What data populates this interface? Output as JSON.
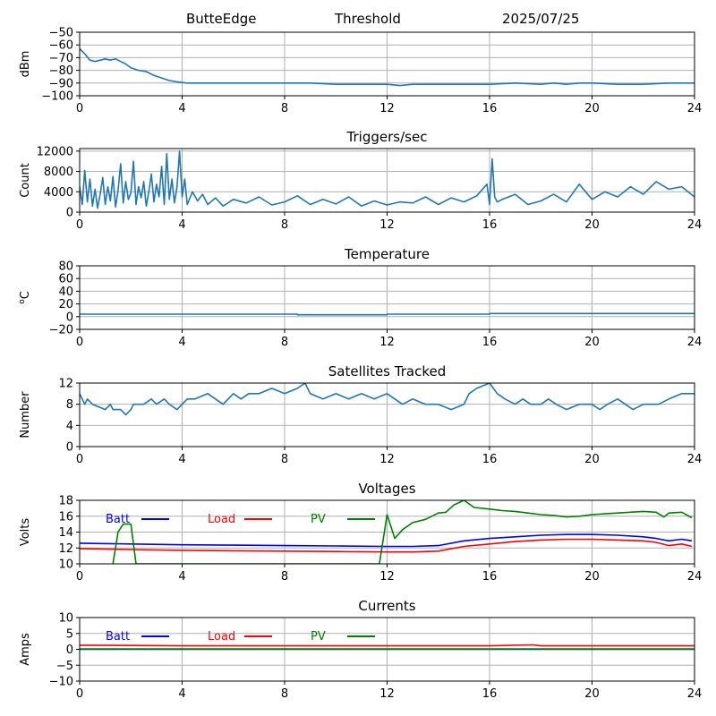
{
  "header": {
    "station": "ButteEdge",
    "mode": "Threshold",
    "date": "2025/07/25"
  },
  "colors": {
    "line": "#1f77b4",
    "batt": "#0000ff",
    "load": "#ff0000",
    "pv": "#008000",
    "grid": "#b0b0b0"
  },
  "chart_data": [
    {
      "id": "rssi",
      "type": "line",
      "title": "",
      "xlabel": "",
      "ylabel": "dBm",
      "xlim": [
        0,
        24
      ],
      "ylim": [
        -100,
        -50
      ],
      "xticks": [
        "0",
        "4",
        "8",
        "12",
        "16",
        "20",
        "24"
      ],
      "yticks": [
        -100,
        -90,
        -80,
        -70,
        -60,
        -50
      ],
      "ytick_labels": [
        "−100",
        "−90",
        "−80",
        "−70",
        "−60",
        "−50"
      ],
      "grid": true,
      "series": [
        {
          "color": "#1f77b4",
          "x": [
            0,
            0.2,
            0.4,
            0.6,
            0.8,
            1.0,
            1.2,
            1.4,
            1.6,
            1.8,
            2.0,
            2.3,
            2.6,
            2.9,
            3.2,
            3.5,
            3.8,
            4.2,
            5,
            6,
            7,
            8,
            9,
            10,
            11,
            12,
            12.5,
            13,
            14,
            15,
            16,
            17,
            18,
            18.5,
            19,
            19.5,
            20,
            21,
            22,
            23,
            24
          ],
          "y": [
            -63,
            -67,
            -72,
            -73,
            -72,
            -71,
            -72,
            -71,
            -73,
            -75,
            -78,
            -80,
            -81,
            -84,
            -86,
            -88,
            -89,
            -90,
            -90,
            -90,
            -90,
            -90,
            -90,
            -91,
            -91,
            -91,
            -92,
            -91,
            -91,
            -91,
            -91,
            -90,
            -91,
            -90,
            -91,
            -90,
            -90,
            -91,
            -91,
            -90,
            -90
          ]
        }
      ]
    },
    {
      "id": "triggers",
      "type": "line",
      "title": "Triggers/sec",
      "xlabel": "",
      "ylabel": "Count",
      "xlim": [
        0,
        24
      ],
      "ylim": [
        0,
        12500
      ],
      "xticks": [
        "0",
        "4",
        "8",
        "12",
        "16",
        "20",
        "24"
      ],
      "yticks": [
        0,
        4000,
        8000,
        12000
      ],
      "ytick_labels": [
        "0",
        "4000",
        "8000",
        "12000"
      ],
      "grid": true,
      "series": [
        {
          "color": "#1f77b4",
          "x": [
            0,
            0.1,
            0.2,
            0.3,
            0.4,
            0.5,
            0.6,
            0.7,
            0.8,
            0.9,
            1.0,
            1.1,
            1.2,
            1.3,
            1.4,
            1.5,
            1.6,
            1.7,
            1.8,
            1.9,
            2.0,
            2.1,
            2.2,
            2.3,
            2.4,
            2.5,
            2.6,
            2.7,
            2.8,
            2.9,
            3.0,
            3.1,
            3.2,
            3.3,
            3.4,
            3.5,
            3.6,
            3.7,
            3.8,
            3.9,
            4.0,
            4.1,
            4.2,
            4.4,
            4.6,
            4.8,
            5.0,
            5.3,
            5.6,
            6.0,
            6.5,
            7.0,
            7.5,
            8.0,
            8.5,
            9.0,
            9.5,
            10.0,
            10.5,
            11.0,
            11.5,
            12.0,
            12.5,
            13.0,
            13.5,
            14.0,
            14.5,
            15.0,
            15.5,
            15.9,
            16.0,
            16.1,
            16.2,
            16.3,
            16.5,
            17.0,
            17.5,
            18.0,
            18.5,
            19.0,
            19.5,
            20.0,
            20.5,
            21.0,
            21.5,
            22.0,
            22.5,
            23.0,
            23.5,
            24.0
          ],
          "y": [
            5000,
            1500,
            8200,
            2000,
            6500,
            1200,
            4500,
            800,
            3500,
            6800,
            1500,
            5000,
            2200,
            7000,
            1000,
            4200,
            9500,
            1800,
            6000,
            2500,
            3800,
            10000,
            1500,
            5000,
            2800,
            6000,
            1200,
            4000,
            7500,
            2000,
            5500,
            3000,
            9000,
            1500,
            11500,
            2500,
            6500,
            1800,
            5000,
            12000,
            3000,
            6500,
            1500,
            4000,
            2200,
            3500,
            1500,
            2800,
            1200,
            2500,
            1800,
            3000,
            1400,
            2000,
            3200,
            1500,
            2500,
            1600,
            3000,
            1200,
            2200,
            1400,
            2000,
            1800,
            3000,
            1500,
            2800,
            2000,
            3200,
            5500,
            1500,
            10500,
            3000,
            2000,
            2500,
            3500,
            1500,
            2200,
            3500,
            2000,
            5500,
            2500,
            4000,
            3000,
            5000,
            3500,
            6000,
            4500,
            5000,
            3000
          ]
        }
      ]
    },
    {
      "id": "temperature",
      "type": "line",
      "title": "Temperature",
      "xlabel": "",
      "ylabel": "oC",
      "xlim": [
        0,
        24
      ],
      "ylim": [
        -20,
        80
      ],
      "xticks": [
        "0",
        "4",
        "8",
        "12",
        "16",
        "20",
        "24"
      ],
      "yticks": [
        -20,
        0,
        20,
        40,
        60,
        80
      ],
      "ytick_labels": [
        "−20",
        "0",
        "20",
        "40",
        "60",
        "80"
      ],
      "grid": true,
      "series": [
        {
          "color": "#1f77b4",
          "x": [
            0,
            8.5,
            8.5,
            12,
            12,
            16,
            16,
            24
          ],
          "y": [
            4,
            4,
            3,
            3,
            4,
            4,
            5,
            5
          ]
        }
      ]
    },
    {
      "id": "satellites",
      "type": "line",
      "title": "Satellites Tracked",
      "xlabel": "",
      "ylabel": "Number",
      "xlim": [
        0,
        24
      ],
      "ylim": [
        0,
        12
      ],
      "xticks": [
        "0",
        "4",
        "8",
        "12",
        "16",
        "20",
        "24"
      ],
      "yticks": [
        0,
        4,
        8,
        12
      ],
      "ytick_labels": [
        "0",
        "4",
        "8",
        "12"
      ],
      "grid": true,
      "series": [
        {
          "color": "#1f77b4",
          "x": [
            0,
            0.2,
            0.3,
            0.5,
            1.0,
            1.2,
            1.3,
            1.6,
            1.8,
            2.0,
            2.1,
            2.5,
            2.8,
            3.0,
            3.3,
            3.5,
            3.8,
            4.0,
            4.2,
            4.5,
            5.0,
            5.3,
            5.6,
            6.0,
            6.3,
            6.6,
            7.0,
            7.5,
            8.0,
            8.5,
            8.8,
            9.0,
            9.5,
            10.0,
            10.5,
            11.0,
            11.5,
            12.0,
            12.3,
            12.6,
            13.0,
            13.5,
            14.0,
            14.5,
            15.0,
            15.2,
            15.5,
            16.0,
            16.3,
            16.6,
            17.0,
            17.3,
            17.6,
            18.0,
            18.3,
            18.6,
            19.0,
            19.5,
            20.0,
            20.3,
            20.6,
            21.0,
            21.3,
            21.6,
            22.0,
            22.3,
            22.6,
            23.0,
            23.5,
            24.0
          ],
          "y": [
            10,
            8,
            9,
            8,
            7,
            8,
            7,
            7,
            6,
            7,
            8,
            8,
            9,
            8,
            9,
            8,
            7,
            8,
            9,
            9,
            10,
            9,
            8,
            10,
            9,
            10,
            10,
            11,
            10,
            11,
            12,
            10,
            9,
            10,
            9,
            10,
            9,
            10,
            9,
            8,
            9,
            8,
            8,
            7,
            8,
            10,
            11,
            12,
            10,
            9,
            8,
            9,
            8,
            8,
            9,
            8,
            7,
            8,
            8,
            7,
            8,
            9,
            8,
            7,
            8,
            8,
            8,
            9,
            10,
            10
          ]
        }
      ]
    },
    {
      "id": "voltages",
      "type": "line",
      "title": "Voltages",
      "xlabel": "",
      "ylabel": "Volts",
      "xlim": [
        0,
        24
      ],
      "ylim": [
        10,
        18
      ],
      "xticks": [
        "0",
        "4",
        "8",
        "12",
        "16",
        "20",
        "24"
      ],
      "yticks": [
        10,
        12,
        14,
        16,
        18
      ],
      "ytick_labels": [
        "10",
        "12",
        "14",
        "16",
        "18"
      ],
      "grid": true,
      "legend": {
        "placement": "top-left",
        "entries": [
          "Batt",
          "Load",
          "PV"
        ]
      },
      "series": [
        {
          "name": "Batt",
          "color": "#0000ff",
          "x": [
            0,
            2,
            4,
            6,
            8,
            10,
            12,
            13,
            14,
            15,
            16,
            17,
            18,
            19,
            20,
            21,
            22,
            22.5,
            23,
            23.5,
            23.9
          ],
          "y": [
            12.6,
            12.5,
            12.4,
            12.35,
            12.3,
            12.25,
            12.2,
            12.2,
            12.3,
            12.9,
            13.2,
            13.4,
            13.6,
            13.7,
            13.7,
            13.6,
            13.4,
            13.2,
            12.9,
            13.1,
            12.9
          ]
        },
        {
          "name": "Load",
          "color": "#ff0000",
          "x": [
            0,
            2,
            4,
            6,
            8,
            10,
            12,
            13,
            14,
            15,
            16,
            17,
            18,
            19,
            20,
            21,
            22,
            22.5,
            23,
            23.5,
            23.9
          ],
          "y": [
            11.9,
            11.8,
            11.7,
            11.65,
            11.6,
            11.55,
            11.5,
            11.5,
            11.6,
            12.2,
            12.5,
            12.8,
            13.0,
            13.1,
            13.1,
            13.0,
            12.9,
            12.7,
            12.3,
            12.5,
            12.2
          ]
        },
        {
          "name": "PV",
          "color": "#008000",
          "x": [
            1.3,
            1.5,
            1.7,
            2.0,
            2.1,
            2.2,
            11.7,
            12.0,
            12.3,
            12.6,
            13.0,
            13.5,
            14.0,
            14.3,
            14.6,
            15.0,
            15.4,
            16.0,
            16.5,
            17.0,
            17.5,
            18.0,
            18.5,
            19.0,
            19.5,
            20.0,
            20.5,
            21.0,
            21.5,
            22.0,
            22.5,
            22.8,
            23.0,
            23.5,
            23.9
          ],
          "y": [
            10.0,
            14.0,
            15.0,
            15.0,
            12.5,
            10.0,
            10.0,
            16.2,
            13.2,
            14.3,
            15.2,
            15.6,
            16.4,
            16.5,
            17.4,
            18.0,
            17.1,
            16.9,
            16.7,
            16.6,
            16.4,
            16.2,
            16.1,
            15.9,
            16.0,
            16.2,
            16.3,
            16.4,
            16.5,
            16.6,
            16.5,
            15.9,
            16.4,
            16.5,
            15.8
          ]
        }
      ]
    },
    {
      "id": "currents",
      "type": "line",
      "title": "Currents",
      "xlabel": "",
      "ylabel": "Amps",
      "xlim": [
        0,
        24
      ],
      "ylim": [
        -10,
        10
      ],
      "xticks": [
        "0",
        "4",
        "8",
        "12",
        "16",
        "20",
        "24"
      ],
      "yticks": [
        -10,
        -5,
        0,
        5,
        10
      ],
      "ytick_labels": [
        "−10",
        "−5",
        "0",
        "5",
        "10"
      ],
      "grid": true,
      "legend": {
        "placement": "top-left",
        "entries": [
          "Batt",
          "Load",
          "PV"
        ]
      },
      "series": [
        {
          "name": "Batt",
          "color": "#0000ff",
          "x": [
            0,
            24
          ],
          "y": [
            0,
            0
          ]
        },
        {
          "name": "Load",
          "color": "#ff0000",
          "x": [
            0,
            2,
            4,
            8,
            12,
            16,
            17.7,
            18,
            24
          ],
          "y": [
            1.3,
            1.2,
            1.1,
            1.1,
            1.1,
            1.1,
            1.4,
            1.1,
            1.1
          ]
        },
        {
          "name": "PV",
          "color": "#008000",
          "x": [
            0,
            24
          ],
          "y": [
            0.1,
            0.1
          ]
        }
      ]
    }
  ]
}
